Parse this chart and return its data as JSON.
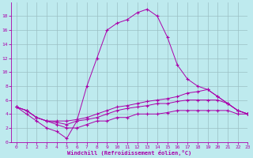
{
  "xlabel": "Windchill (Refroidissement éolien,°C)",
  "background_color": "#beeaee",
  "grid_color": "#9bbfc4",
  "line_color": "#aa00aa",
  "xlim": [
    -0.5,
    23
  ],
  "ylim": [
    0,
    20
  ],
  "xticks": [
    0,
    1,
    2,
    3,
    4,
    5,
    6,
    7,
    8,
    9,
    10,
    11,
    12,
    13,
    14,
    15,
    16,
    17,
    18,
    19,
    20,
    21,
    22,
    23
  ],
  "yticks": [
    0,
    2,
    4,
    6,
    8,
    10,
    12,
    14,
    16,
    18
  ],
  "line1_x": [
    0,
    1,
    2,
    3,
    4,
    5,
    6,
    7,
    8,
    9,
    10,
    11,
    12,
    13,
    14,
    15,
    16,
    17,
    18,
    19,
    20,
    21,
    22,
    23
  ],
  "line1_y": [
    5,
    4,
    3,
    2,
    1.5,
    0.5,
    3,
    8,
    12,
    16,
    17,
    17.5,
    18.5,
    19,
    18,
    15,
    11,
    9,
    8,
    7.5,
    6.5,
    5.5,
    4.5,
    4
  ],
  "line2_x": [
    0,
    1,
    2,
    3,
    4,
    5,
    6,
    7,
    8,
    9,
    10,
    11,
    12,
    13,
    14,
    15,
    16,
    17,
    18,
    19,
    20,
    21,
    22,
    23
  ],
  "line2_y": [
    5,
    4.5,
    3.5,
    3,
    3,
    3,
    3.2,
    3.5,
    4,
    4.5,
    5,
    5.2,
    5.5,
    5.8,
    6,
    6.2,
    6.5,
    7,
    7.2,
    7.5,
    6.5,
    5.5,
    4.5,
    4
  ],
  "line3_x": [
    0,
    1,
    2,
    3,
    4,
    5,
    6,
    7,
    8,
    9,
    10,
    11,
    12,
    13,
    14,
    15,
    16,
    17,
    18,
    19,
    20,
    21,
    22,
    23
  ],
  "line3_y": [
    5,
    4.5,
    3.5,
    3,
    2.8,
    2.5,
    3,
    3.2,
    3.5,
    4,
    4.5,
    4.8,
    5,
    5.2,
    5.5,
    5.5,
    5.8,
    6,
    6,
    6,
    6,
    5.5,
    4.5,
    4
  ],
  "line4_x": [
    0,
    1,
    2,
    3,
    4,
    5,
    6,
    7,
    8,
    9,
    10,
    11,
    12,
    13,
    14,
    15,
    16,
    17,
    18,
    19,
    20,
    21,
    22,
    23
  ],
  "line4_y": [
    5,
    4.5,
    3.5,
    3,
    2.5,
    2,
    2,
    2.5,
    3,
    3,
    3.5,
    3.5,
    4,
    4,
    4,
    4.2,
    4.5,
    4.5,
    4.5,
    4.5,
    4.5,
    4.5,
    4,
    4
  ]
}
